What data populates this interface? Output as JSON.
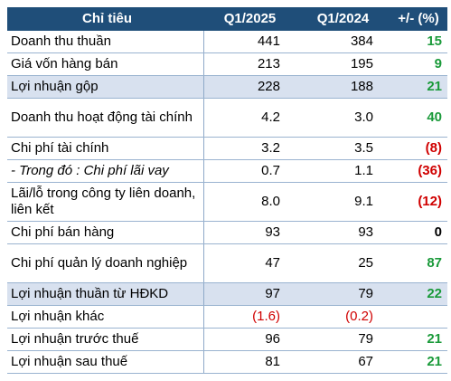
{
  "header": {
    "col_item": "Chỉ tiêu",
    "col_q1_2025": "Q1/2025",
    "col_q1_2024": "Q1/2024",
    "col_change": "+/- (%)"
  },
  "rows": [
    {
      "label": "Doanh thu thuần",
      "q2025": "441",
      "q2024": "384",
      "change": "15"
    },
    {
      "label": "Giá vốn hàng bán",
      "q2025": "213",
      "q2024": "195",
      "change": "9"
    },
    {
      "label": "Lợi nhuận gộp",
      "q2025": "228",
      "q2024": "188",
      "change": "21"
    },
    {
      "label": "Doanh thu hoạt động tài chính",
      "q2025": "4.2",
      "q2024": "3.0",
      "change": "40"
    },
    {
      "label": "Chi phí tài chính",
      "q2025": "3.2",
      "q2024": "3.5",
      "change": "(8)"
    },
    {
      "label": "- Trong đó : Chi phí lãi vay",
      "q2025": "0.7",
      "q2024": "1.1",
      "change": "(36)"
    },
    {
      "label": "Lãi/lỗ trong công ty liên doanh, liên kết",
      "q2025": "8.0",
      "q2024": "9.1",
      "change": "(12)"
    },
    {
      "label": "Chi phí bán hàng",
      "q2025": "93",
      "q2024": "93",
      "change": "0"
    },
    {
      "label": "Chi phí quản lý doanh nghiệp",
      "q2025": "47",
      "q2024": "25",
      "change": "87"
    },
    {
      "label": "Lợi nhuận thuần từ HĐKD",
      "q2025": "97",
      "q2024": "79",
      "change": "22"
    },
    {
      "label": "Lợi nhuận khác",
      "q2025": "(1.6)",
      "q2024": "(0.2)",
      "change": ""
    },
    {
      "label": "Lợi nhuận trước thuế",
      "q2025": "96",
      "q2024": "79",
      "change": "21"
    },
    {
      "label": "Lợi nhuận sau thuế",
      "q2025": "81",
      "q2024": "67",
      "change": "21"
    }
  ],
  "colors": {
    "header_bg": "#1f4e79",
    "highlight_bg": "#d8e1ef",
    "positive": "#1a9a3a",
    "negative": "#d00000"
  }
}
